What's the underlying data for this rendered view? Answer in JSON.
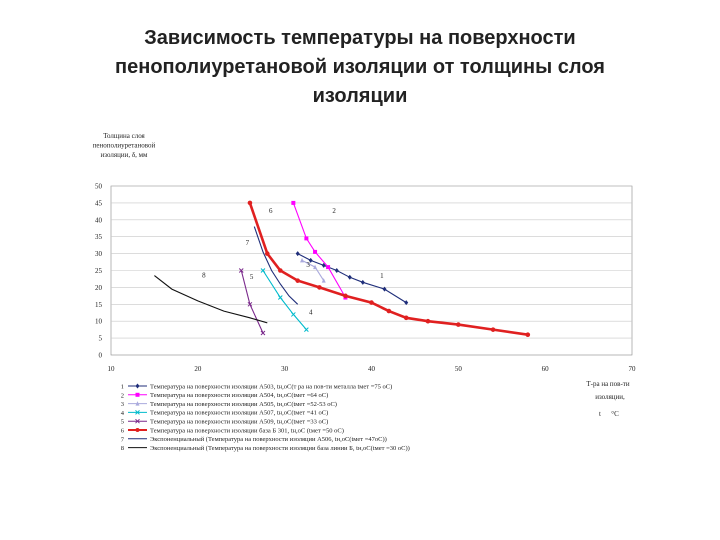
{
  "title_lines": [
    "Зависимость температуры на поверхности",
    "пенополиуретановой изоляции от толщины слоя",
    "изоляции"
  ],
  "chart_data": {
    "type": "line",
    "ylabel_lines": [
      "Толщина слоя",
      "пенополиуретановой",
      "изоляции, δ, мм"
    ],
    "xlabel_lines": [
      "Т-ра на пов-ти",
      "изоляции,",
      "t",
      "°C"
    ],
    "xlim": [
      10,
      70
    ],
    "ylim": [
      0,
      50
    ],
    "x_ticks": [
      "10",
      "20",
      "30",
      "40",
      "50",
      "60",
      "70"
    ],
    "y_ticks": [
      "0",
      "5",
      "10",
      "15",
      "20",
      "25",
      "30",
      "35",
      "40",
      "45",
      "50"
    ],
    "grid": true,
    "series": [
      {
        "id": "1",
        "name": "Температура на поверхности изоляции А503, tн,оС(т ра на пов-ти металла tмет =75 оС)",
        "color": "#1f2e7a",
        "marker": "diamond",
        "x": [
          31.5,
          33,
          34.5,
          36,
          37.5,
          39,
          41.5,
          44
        ],
        "y": [
          30,
          28,
          26.5,
          25,
          23,
          21.5,
          19.5,
          15.5
        ],
        "label_pos": [
          41,
          22.8
        ]
      },
      {
        "id": "2",
        "name": "Температура на поверхности изоляции А504, tн,оС(tмет =64 оС)",
        "color": "#ff00ff",
        "marker": "square",
        "x": [
          31,
          32.5,
          33.5,
          35,
          37
        ],
        "y": [
          45,
          34.5,
          30.5,
          26,
          17
        ],
        "label_pos": [
          35.5,
          42
        ]
      },
      {
        "id": "3",
        "name": "Температура на поверхности изоляции А505, tн,оС(tмет =52-53 оС)",
        "color": "#aaaadd",
        "marker": "triangle",
        "x": [
          32,
          33.5,
          34.5
        ],
        "y": [
          28,
          26,
          22
        ],
        "label_pos": [
          32.5,
          26
        ]
      },
      {
        "id": "4",
        "name": "Температура на поверхности изоляции А507, tн,оС(tмет =41 оС)",
        "color": "#00bbcc",
        "marker": "x",
        "x": [
          27.5,
          29.5,
          31,
          32.5
        ],
        "y": [
          25,
          17,
          12,
          7.5
        ],
        "label_pos": [
          32.8,
          12
        ]
      },
      {
        "id": "5",
        "name": "Температура на поверхности изоляции А509, tн,оС(tмет =33 оС)",
        "color": "#7b2a8c",
        "marker": "x",
        "x": [
          25,
          26,
          27.5
        ],
        "y": [
          25,
          15,
          6.5
        ],
        "label_pos": [
          26,
          22.5
        ]
      },
      {
        "id": "6",
        "name": "Температура на поверхности изоляции база Б 301, tн,оС (tмет =50 оС)",
        "color": "#e02020",
        "marker": "circle",
        "width": 2.6,
        "x": [
          26,
          28,
          29.5,
          31.5,
          34,
          37,
          40,
          42,
          44,
          46.5,
          50,
          54,
          58
        ],
        "y": [
          45,
          30,
          25,
          22,
          20,
          17.5,
          15.5,
          13,
          11,
          10,
          9,
          7.5,
          6
        ],
        "label_pos": [
          28.2,
          42
        ]
      },
      {
        "id": "7",
        "name": "Экспоненциальный (Температура на поверхности изоляции А506, tн,оС(tмет =47оС))",
        "color": "#1f2e7a",
        "marker": "none",
        "x": [
          26.5,
          27.5,
          28.5,
          29.5,
          30.5,
          31.5
        ],
        "y": [
          38,
          30.5,
          25,
          21,
          17.5,
          15
        ],
        "label_pos": [
          25.5,
          32.5
        ]
      },
      {
        "id": "8",
        "name": "Экспоненциальный (Температура на поверхности изоляции база линии Б, tн,оС(tмет =30 оС))",
        "color": "#111111",
        "marker": "none",
        "x": [
          15,
          17,
          20,
          23,
          26,
          28
        ],
        "y": [
          23.5,
          19.5,
          16,
          13,
          11,
          9.5
        ],
        "label_pos": [
          20.5,
          23
        ]
      }
    ]
  }
}
